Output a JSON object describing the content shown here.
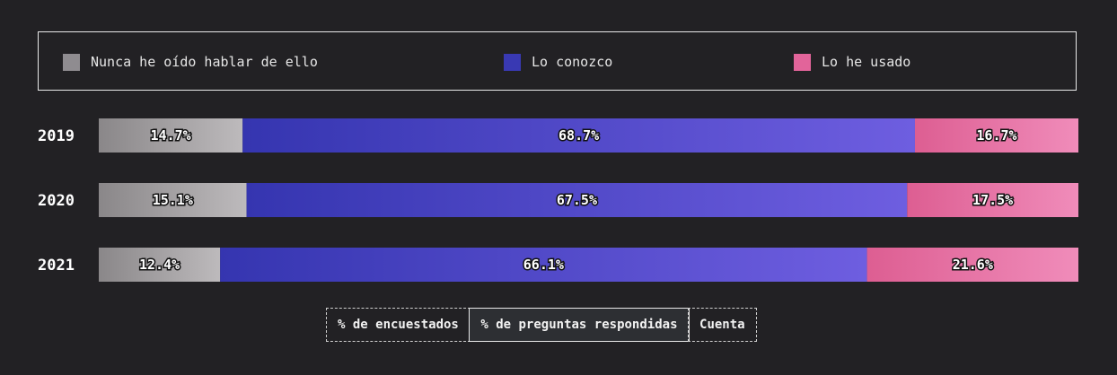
{
  "legend": {
    "items": [
      {
        "label": "Nunca he oído hablar de ello",
        "color": "#8f8c90"
      },
      {
        "label": "Lo conozco",
        "color": "#3939b3"
      },
      {
        "label": "Lo he usado",
        "color": "#e2649a"
      }
    ]
  },
  "tabs": [
    {
      "label": "% de encuestados",
      "active": false
    },
    {
      "label": "% de preguntas respondidas",
      "active": true
    },
    {
      "label": "Cuenta",
      "active": false
    }
  ],
  "chart_data": {
    "type": "bar",
    "orientation": "horizontal",
    "stacked": true,
    "categories": [
      "2019",
      "2020",
      "2021"
    ],
    "series": [
      {
        "name": "Nunca he oído hablar de ello",
        "values": [
          14.7,
          15.1,
          12.4
        ],
        "labels": [
          "14.7%",
          "15.1%",
          "12.4%"
        ],
        "color_start": "#8a8789",
        "color_end": "#bdbabc"
      },
      {
        "name": "Lo conozco",
        "values": [
          68.7,
          67.5,
          66.1
        ],
        "labels": [
          "68.7%",
          "67.5%",
          "66.1%"
        ],
        "color_start": "#3535b0",
        "color_end": "#6e5ee0"
      },
      {
        "name": "Lo he usado",
        "values": [
          16.7,
          17.5,
          21.6
        ],
        "labels": [
          "16.7%",
          "17.5%",
          "21.6%"
        ],
        "color_start": "#dd5e92",
        "color_end": "#f08cba"
      }
    ],
    "xlim": [
      0,
      100
    ],
    "grid": false,
    "legend_position": "top"
  }
}
